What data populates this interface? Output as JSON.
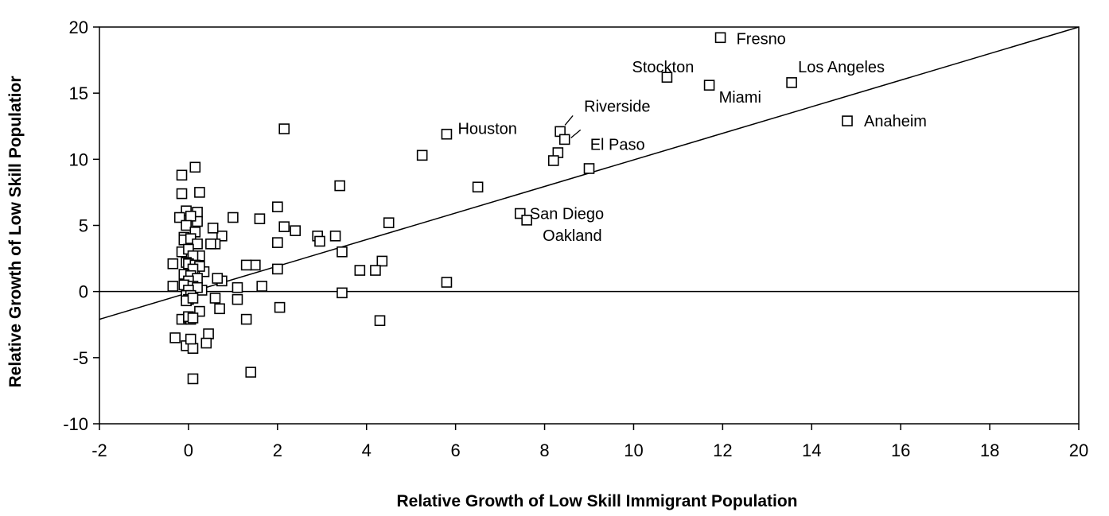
{
  "chart_data": {
    "type": "scatter",
    "title": "",
    "xlabel": "Relative Growth of Low Skill Immigrant Population",
    "ylabel": "Relative Growth of Low Skill Populatior",
    "xlim": [
      -2,
      20
    ],
    "ylim": [
      -10,
      20
    ],
    "x_ticks": [
      "-2",
      "0",
      "2",
      "4",
      "6",
      "8",
      "10",
      "12",
      "14",
      "16",
      "18",
      "20"
    ],
    "y_ticks": [
      "20",
      "15",
      "10",
      "5",
      "0",
      "-5",
      "-10"
    ],
    "grid": false,
    "legend": "none",
    "reference_lines": [
      {
        "kind": "horizontal",
        "y": 0
      },
      {
        "kind": "fit",
        "from": [
          -2,
          -2.1
        ],
        "to": [
          20,
          20
        ]
      }
    ],
    "annotations": [
      {
        "text": "Fresno",
        "x": 11.95,
        "y": 19.2
      },
      {
        "text": "Stockton",
        "x": 10.75,
        "y": 16.2
      },
      {
        "text": "Los Angeles",
        "x": 13.55,
        "y": 15.8
      },
      {
        "text": "Miami",
        "x": 11.7,
        "y": 15.6
      },
      {
        "text": "Riverside",
        "x": 8.35,
        "y": 12.1
      },
      {
        "text": "El Paso",
        "x": 8.45,
        "y": 11.5
      },
      {
        "text": "Houston",
        "x": 5.8,
        "y": 11.9
      },
      {
        "text": "Anaheim",
        "x": 14.8,
        "y": 12.9
      },
      {
        "text": "San Diego",
        "x": 7.45,
        "y": 5.9
      },
      {
        "text": "Oakland",
        "x": 7.6,
        "y": 5.4
      }
    ],
    "points": [
      [
        11.95,
        19.2
      ],
      [
        10.75,
        16.2
      ],
      [
        13.55,
        15.8
      ],
      [
        11.7,
        15.6
      ],
      [
        14.8,
        12.9
      ],
      [
        8.35,
        12.1
      ],
      [
        8.45,
        11.5
      ],
      [
        5.8,
        11.9
      ],
      [
        8.3,
        10.5
      ],
      [
        8.2,
        9.9
      ],
      [
        9.0,
        9.3
      ],
      [
        5.25,
        10.3
      ],
      [
        6.5,
        7.9
      ],
      [
        7.45,
        5.9
      ],
      [
        7.6,
        5.4
      ],
      [
        5.8,
        0.7
      ],
      [
        4.5,
        5.2
      ],
      [
        4.35,
        2.3
      ],
      [
        4.2,
        1.6
      ],
      [
        4.3,
        -2.2
      ],
      [
        3.45,
        3.0
      ],
      [
        3.45,
        -0.1
      ],
      [
        3.4,
        8.0
      ],
      [
        3.3,
        4.2
      ],
      [
        3.85,
        1.6
      ],
      [
        2.15,
        12.3
      ],
      [
        2.0,
        6.4
      ],
      [
        2.15,
        4.9
      ],
      [
        2.4,
        4.6
      ],
      [
        2.0,
        3.7
      ],
      [
        2.0,
        1.7
      ],
      [
        2.05,
        -1.2
      ],
      [
        2.9,
        4.2
      ],
      [
        2.95,
        3.8
      ],
      [
        1.6,
        5.5
      ],
      [
        1.0,
        5.6
      ],
      [
        1.5,
        2.0
      ],
      [
        1.3,
        2.0
      ],
      [
        1.65,
        0.4
      ],
      [
        1.1,
        0.3
      ],
      [
        1.1,
        -0.6
      ],
      [
        1.3,
        -2.1
      ],
      [
        1.4,
        -6.1
      ],
      [
        0.75,
        4.2
      ],
      [
        0.55,
        4.8
      ],
      [
        0.6,
        3.6
      ],
      [
        0.5,
        3.6
      ],
      [
        0.75,
        0.8
      ],
      [
        0.65,
        1.0
      ],
      [
        0.6,
        -0.5
      ],
      [
        0.7,
        -1.3
      ],
      [
        0.45,
        -3.2
      ],
      [
        0.4,
        -3.9
      ],
      [
        0.25,
        -1.5
      ],
      [
        0.35,
        1.5
      ],
      [
        0.3,
        0.1
      ],
      [
        0.15,
        9.4
      ],
      [
        -0.15,
        8.8
      ],
      [
        -0.15,
        7.4
      ],
      [
        0.25,
        7.5
      ],
      [
        0.2,
        6.0
      ],
      [
        -0.05,
        6.1
      ],
      [
        -0.2,
        5.6
      ],
      [
        0.2,
        5.3
      ],
      [
        0.05,
        5.7
      ],
      [
        -0.05,
        5.0
      ],
      [
        0.15,
        4.5
      ],
      [
        -0.1,
        4.1
      ],
      [
        -0.1,
        3.9
      ],
      [
        0.05,
        4.0
      ],
      [
        0.2,
        3.6
      ],
      [
        -0.15,
        3.0
      ],
      [
        0.0,
        3.2
      ],
      [
        0.25,
        2.7
      ],
      [
        0.1,
        2.7
      ],
      [
        -0.05,
        2.2
      ],
      [
        0.0,
        2.1
      ],
      [
        0.15,
        2.0
      ],
      [
        0.25,
        1.9
      ],
      [
        0.1,
        1.7
      ],
      [
        -0.1,
        1.3
      ],
      [
        0.05,
        1.2
      ],
      [
        0.2,
        1.0
      ],
      [
        0.0,
        0.8
      ],
      [
        -0.1,
        0.5
      ],
      [
        -0.35,
        2.1
      ],
      [
        -0.35,
        0.4
      ],
      [
        0.1,
        0.4
      ],
      [
        0.2,
        0.3
      ],
      [
        0.0,
        0.1
      ],
      [
        -0.05,
        -0.3
      ],
      [
        0.05,
        -0.3
      ],
      [
        0.0,
        -0.6
      ],
      [
        -0.05,
        -0.7
      ],
      [
        0.1,
        -0.5
      ],
      [
        -0.15,
        -2.1
      ],
      [
        0.0,
        -2.0
      ],
      [
        0.05,
        -2.1
      ],
      [
        0.0,
        -1.9
      ],
      [
        0.1,
        -2.0
      ],
      [
        -0.3,
        -3.5
      ],
      [
        -0.05,
        -4.1
      ],
      [
        0.1,
        -4.3
      ],
      [
        0.05,
        -3.6
      ],
      [
        0.1,
        -6.6
      ]
    ]
  }
}
